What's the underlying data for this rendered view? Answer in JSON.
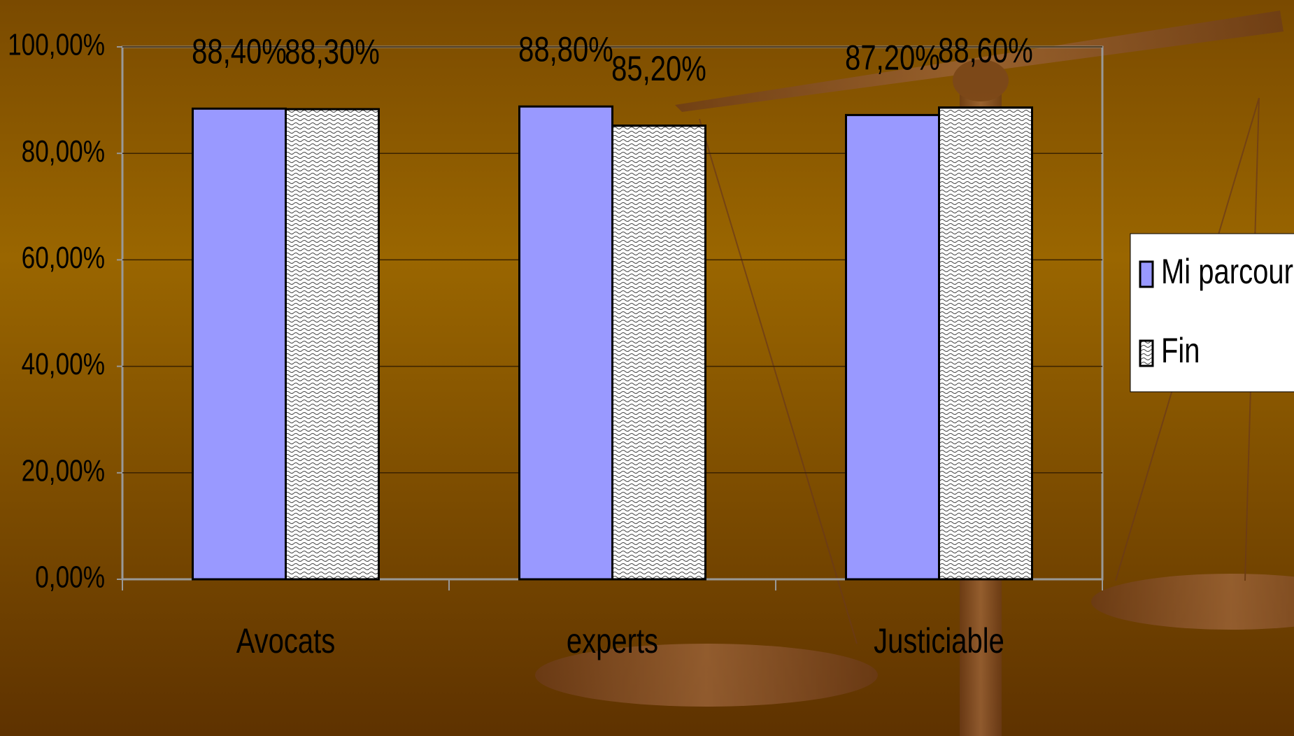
{
  "chart_data": {
    "type": "bar",
    "categories": [
      "Avocats",
      "experts",
      "Justiciable"
    ],
    "series": [
      {
        "name": "Mi parcours",
        "color": "#9999ff",
        "values": [
          88.4,
          88.8,
          87.2
        ],
        "value_labels": [
          "88,40%",
          "88,80%",
          "87,20%"
        ]
      },
      {
        "name": "Fin",
        "color": "#ffffff",
        "pattern": "wave",
        "values": [
          88.3,
          85.2,
          88.6
        ],
        "value_labels": [
          "88,30%",
          "85,20%",
          "88,60%"
        ]
      }
    ],
    "ylim": [
      0,
      100
    ],
    "yticks": [
      {
        "value": 0,
        "label": "0,00%"
      },
      {
        "value": 20,
        "label": "20,00%"
      },
      {
        "value": 40,
        "label": "40,00%"
      },
      {
        "value": 60,
        "label": "60,00%"
      },
      {
        "value": 80,
        "label": "80,00%"
      },
      {
        "value": 100,
        "label": "100,00%"
      }
    ],
    "grid": true,
    "legend": "right"
  }
}
